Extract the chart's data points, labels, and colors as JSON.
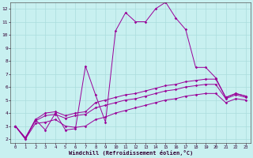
{
  "xlabel": "Windchill (Refroidissement éolien,°C)",
  "bg_color": "#c8f0f0",
  "grid_color": "#aadddd",
  "line_color": "#990099",
  "xlim": [
    -0.5,
    23.5
  ],
  "ylim": [
    1.7,
    12.5
  ],
  "xticks": [
    0,
    1,
    2,
    3,
    4,
    5,
    6,
    7,
    8,
    9,
    10,
    11,
    12,
    13,
    14,
    15,
    16,
    17,
    18,
    19,
    20,
    21,
    22,
    23
  ],
  "yticks": [
    2,
    3,
    4,
    5,
    6,
    7,
    8,
    9,
    10,
    11,
    12
  ],
  "line1_x": [
    0,
    1,
    2,
    3,
    4,
    5,
    6,
    7,
    8,
    9,
    10,
    11,
    12,
    13,
    14,
    15,
    16,
    17,
    18,
    19,
    20,
    21,
    22,
    23
  ],
  "line1_y": [
    3.0,
    2.0,
    3.5,
    2.7,
    4.0,
    2.7,
    2.8,
    7.6,
    5.4,
    3.3,
    10.3,
    11.7,
    11.0,
    11.0,
    12.0,
    12.5,
    11.3,
    10.4,
    7.5,
    7.5,
    6.7,
    5.2,
    5.5,
    5.3
  ],
  "line2_x": [
    0,
    1,
    2,
    3,
    4,
    5,
    6,
    7,
    8,
    9,
    10,
    11,
    12,
    13,
    14,
    15,
    16,
    17,
    18,
    19,
    20,
    21,
    22,
    23
  ],
  "line2_y": [
    3.0,
    2.1,
    3.5,
    4.0,
    4.1,
    3.8,
    4.0,
    4.1,
    4.8,
    5.0,
    5.2,
    5.4,
    5.5,
    5.7,
    5.9,
    6.1,
    6.2,
    6.4,
    6.5,
    6.6,
    6.6,
    5.2,
    5.5,
    5.3
  ],
  "line3_x": [
    0,
    1,
    2,
    3,
    4,
    5,
    6,
    7,
    8,
    9,
    10,
    11,
    12,
    13,
    14,
    15,
    16,
    17,
    18,
    19,
    20,
    21,
    22,
    23
  ],
  "line3_y": [
    3.0,
    2.1,
    3.4,
    3.8,
    3.9,
    3.6,
    3.8,
    3.9,
    4.4,
    4.6,
    4.8,
    5.0,
    5.1,
    5.3,
    5.5,
    5.7,
    5.8,
    6.0,
    6.1,
    6.2,
    6.2,
    5.1,
    5.4,
    5.2
  ],
  "line4_x": [
    0,
    1,
    2,
    3,
    4,
    5,
    6,
    7,
    8,
    9,
    10,
    11,
    12,
    13,
    14,
    15,
    16,
    17,
    18,
    19,
    20,
    21,
    22,
    23
  ],
  "line4_y": [
    3.0,
    2.0,
    3.2,
    3.3,
    3.5,
    3.0,
    2.9,
    3.0,
    3.5,
    3.7,
    4.0,
    4.2,
    4.4,
    4.6,
    4.8,
    5.0,
    5.1,
    5.3,
    5.4,
    5.5,
    5.5,
    4.8,
    5.1,
    5.0
  ],
  "tick_fontsize": 4.0,
  "xlabel_fontsize": 5.0,
  "marker_size": 1.8,
  "line_width": 0.7
}
